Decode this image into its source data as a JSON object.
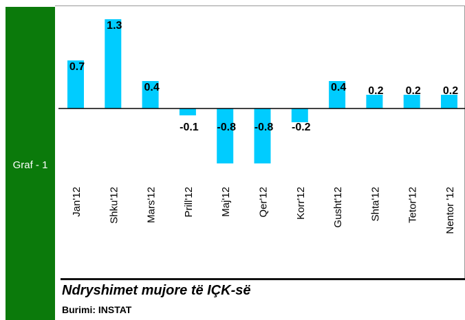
{
  "sidebar_label": "Graf - 1",
  "chart_data": {
    "type": "bar",
    "categories": [
      "Jan'12",
      "Shku'12",
      "Mars'12",
      "Prill'12",
      "Maj'12",
      "Qer'12",
      "Korr'12",
      "Gusht'12",
      "Shta'12",
      "Tetor'12",
      "Nentor '12"
    ],
    "values": [
      0.7,
      1.3,
      0.4,
      -0.1,
      -0.8,
      -0.8,
      -0.2,
      0.4,
      0.2,
      0.2,
      0.2
    ],
    "color": "#00ccff"
  },
  "caption": {
    "title": "Ndryshimet mujore të IÇK-së",
    "source": "Burimi: INSTAT"
  }
}
